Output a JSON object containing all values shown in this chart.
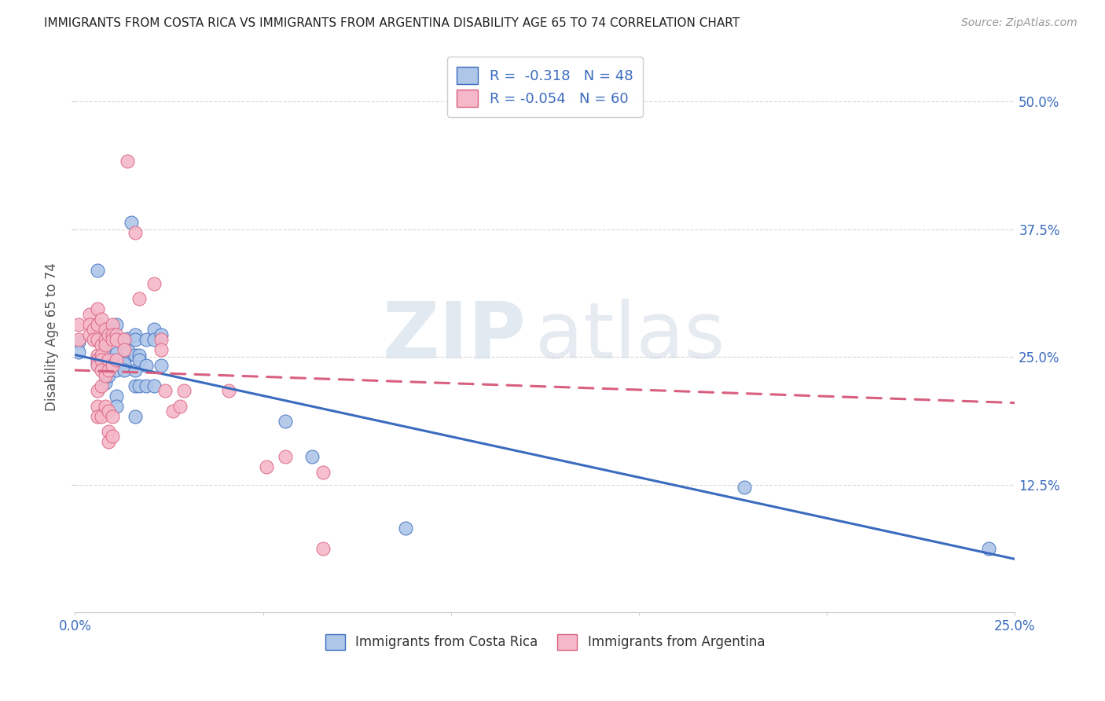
{
  "title": "IMMIGRANTS FROM COSTA RICA VS IMMIGRANTS FROM ARGENTINA DISABILITY AGE 65 TO 74 CORRELATION CHART",
  "source": "Source: ZipAtlas.com",
  "ylabel": "Disability Age 65 to 74",
  "ytick_labels": [
    "50.0%",
    "37.5%",
    "25.0%",
    "12.5%"
  ],
  "ytick_values": [
    0.5,
    0.375,
    0.25,
    0.125
  ],
  "xlim": [
    0.0,
    0.25
  ],
  "ylim": [
    0.0,
    0.54
  ],
  "legend_r_cr": "-0.318",
  "legend_n_cr": "48",
  "legend_r_arg": "-0.054",
  "legend_n_arg": "60",
  "costa_rica_color": "#aec6e8",
  "argentina_color": "#f5b8c8",
  "costa_rica_line_color": "#3a6bbf",
  "argentina_line_color": "#d95f7f",
  "watermark_zip": "ZIP",
  "watermark_atlas": "atlas",
  "costa_rica_points": [
    [
      0.001,
      0.265
    ],
    [
      0.001,
      0.255
    ],
    [
      0.006,
      0.335
    ],
    [
      0.006,
      0.275
    ],
    [
      0.006,
      0.248
    ],
    [
      0.006,
      0.243
    ],
    [
      0.008,
      0.253
    ],
    [
      0.008,
      0.243
    ],
    [
      0.008,
      0.225
    ],
    [
      0.009,
      0.243
    ],
    [
      0.009,
      0.238
    ],
    [
      0.009,
      0.232
    ],
    [
      0.01,
      0.248
    ],
    [
      0.01,
      0.272
    ],
    [
      0.01,
      0.268
    ],
    [
      0.011,
      0.282
    ],
    [
      0.011,
      0.253
    ],
    [
      0.011,
      0.237
    ],
    [
      0.011,
      0.212
    ],
    [
      0.011,
      0.202
    ],
    [
      0.013,
      0.248
    ],
    [
      0.013,
      0.243
    ],
    [
      0.013,
      0.237
    ],
    [
      0.014,
      0.268
    ],
    [
      0.014,
      0.257
    ],
    [
      0.015,
      0.382
    ],
    [
      0.016,
      0.272
    ],
    [
      0.016,
      0.267
    ],
    [
      0.016,
      0.252
    ],
    [
      0.016,
      0.237
    ],
    [
      0.016,
      0.222
    ],
    [
      0.016,
      0.192
    ],
    [
      0.017,
      0.252
    ],
    [
      0.017,
      0.247
    ],
    [
      0.017,
      0.222
    ],
    [
      0.019,
      0.267
    ],
    [
      0.019,
      0.242
    ],
    [
      0.019,
      0.222
    ],
    [
      0.021,
      0.277
    ],
    [
      0.021,
      0.267
    ],
    [
      0.021,
      0.222
    ],
    [
      0.023,
      0.272
    ],
    [
      0.023,
      0.242
    ],
    [
      0.056,
      0.187
    ],
    [
      0.063,
      0.152
    ],
    [
      0.088,
      0.082
    ],
    [
      0.178,
      0.122
    ],
    [
      0.243,
      0.062
    ]
  ],
  "argentina_points": [
    [
      0.001,
      0.282
    ],
    [
      0.001,
      0.267
    ],
    [
      0.004,
      0.292
    ],
    [
      0.004,
      0.282
    ],
    [
      0.004,
      0.272
    ],
    [
      0.005,
      0.277
    ],
    [
      0.005,
      0.267
    ],
    [
      0.006,
      0.297
    ],
    [
      0.006,
      0.282
    ],
    [
      0.006,
      0.267
    ],
    [
      0.006,
      0.252
    ],
    [
      0.006,
      0.247
    ],
    [
      0.006,
      0.242
    ],
    [
      0.006,
      0.217
    ],
    [
      0.006,
      0.202
    ],
    [
      0.006,
      0.192
    ],
    [
      0.007,
      0.287
    ],
    [
      0.007,
      0.262
    ],
    [
      0.007,
      0.252
    ],
    [
      0.007,
      0.247
    ],
    [
      0.007,
      0.237
    ],
    [
      0.007,
      0.222
    ],
    [
      0.007,
      0.192
    ],
    [
      0.008,
      0.277
    ],
    [
      0.008,
      0.267
    ],
    [
      0.008,
      0.262
    ],
    [
      0.008,
      0.232
    ],
    [
      0.008,
      0.202
    ],
    [
      0.009,
      0.272
    ],
    [
      0.009,
      0.247
    ],
    [
      0.009,
      0.237
    ],
    [
      0.009,
      0.197
    ],
    [
      0.009,
      0.177
    ],
    [
      0.009,
      0.167
    ],
    [
      0.01,
      0.282
    ],
    [
      0.01,
      0.272
    ],
    [
      0.01,
      0.267
    ],
    [
      0.01,
      0.242
    ],
    [
      0.01,
      0.192
    ],
    [
      0.01,
      0.172
    ],
    [
      0.011,
      0.272
    ],
    [
      0.011,
      0.267
    ],
    [
      0.011,
      0.247
    ],
    [
      0.013,
      0.267
    ],
    [
      0.013,
      0.257
    ],
    [
      0.014,
      0.442
    ],
    [
      0.016,
      0.372
    ],
    [
      0.017,
      0.307
    ],
    [
      0.021,
      0.322
    ],
    [
      0.023,
      0.267
    ],
    [
      0.023,
      0.257
    ],
    [
      0.024,
      0.217
    ],
    [
      0.026,
      0.197
    ],
    [
      0.028,
      0.202
    ],
    [
      0.029,
      0.217
    ],
    [
      0.041,
      0.217
    ],
    [
      0.051,
      0.142
    ],
    [
      0.056,
      0.152
    ],
    [
      0.066,
      0.137
    ],
    [
      0.066,
      0.062
    ]
  ],
  "cr_trend_x": [
    0.0,
    0.25
  ],
  "cr_trend_y": [
    0.252,
    0.052
  ],
  "arg_trend_x": [
    0.0,
    0.25
  ],
  "arg_trend_y": [
    0.237,
    0.205
  ],
  "background_color": "#ffffff",
  "grid_color": "#d8d8d8"
}
